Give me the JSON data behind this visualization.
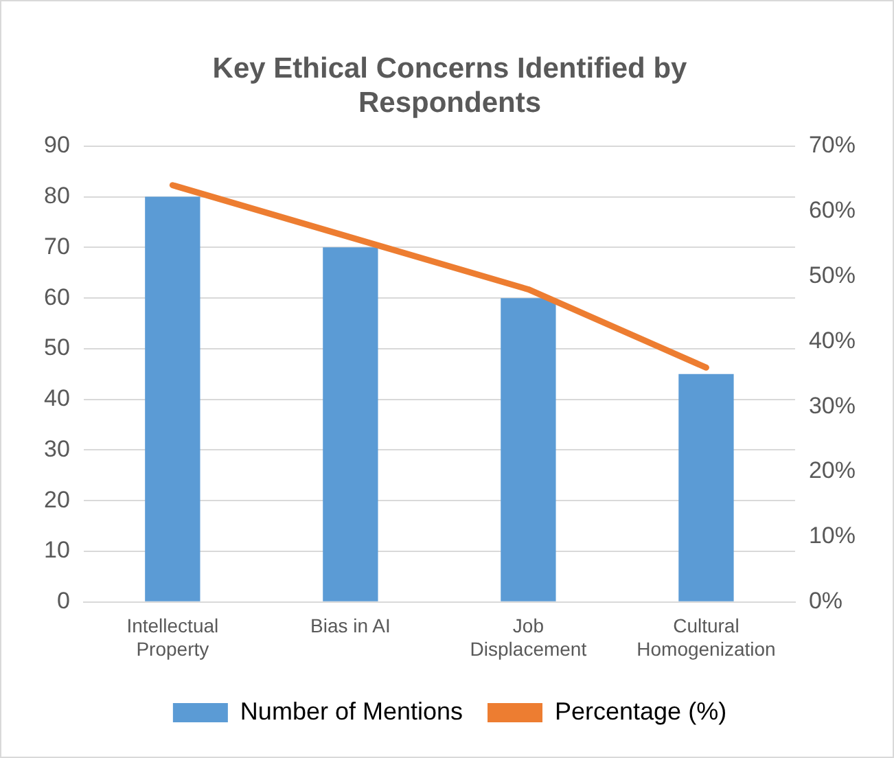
{
  "chart_data": {
    "type": "bar",
    "title": "Key Ethical Concerns Identified by Respondents",
    "categories": [
      "Intellectual Property",
      "Bias in AI",
      "Job Displacement",
      "Cultural Homogenization"
    ],
    "series": [
      {
        "name": "Number of Mentions",
        "color": "#5b9bd5",
        "values": [
          80,
          70,
          60,
          45
        ]
      },
      {
        "name": "Percentage (%)",
        "type": "line",
        "axis": "y2",
        "color": "#ed7d31",
        "values": [
          64,
          56,
          48,
          36
        ]
      }
    ],
    "ylim": [
      0,
      90
    ],
    "yticks": [
      0,
      10,
      20,
      30,
      40,
      50,
      60,
      70,
      80,
      90
    ],
    "y2lim": [
      0,
      70
    ],
    "y2ticks": [
      {
        "value": 0,
        "label": "0%"
      },
      {
        "value": 10,
        "label": "10%"
      },
      {
        "value": 20,
        "label": "20%"
      },
      {
        "value": 30,
        "label": "30%"
      },
      {
        "value": 40,
        "label": "40%"
      },
      {
        "value": 50,
        "label": "50%"
      },
      {
        "value": 60,
        "label": "60%"
      },
      {
        "value": 70,
        "label": "70%"
      }
    ],
    "grid": "y",
    "legend": "bottom",
    "marker": "none",
    "line_style": "solid"
  }
}
